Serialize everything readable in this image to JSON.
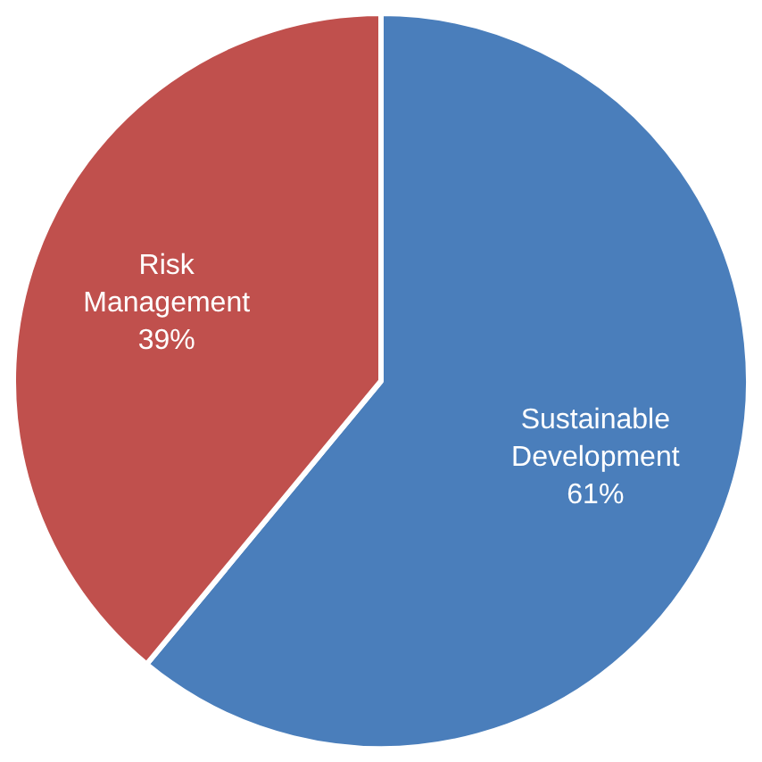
{
  "chart_data": {
    "type": "pie",
    "categories": [
      "Sustainable Development",
      "Risk Management"
    ],
    "values": [
      61,
      39
    ],
    "colors": [
      "#4a7ebb",
      "#c0504d"
    ],
    "value_labels": [
      "61%",
      "39%"
    ],
    "legend": false
  }
}
